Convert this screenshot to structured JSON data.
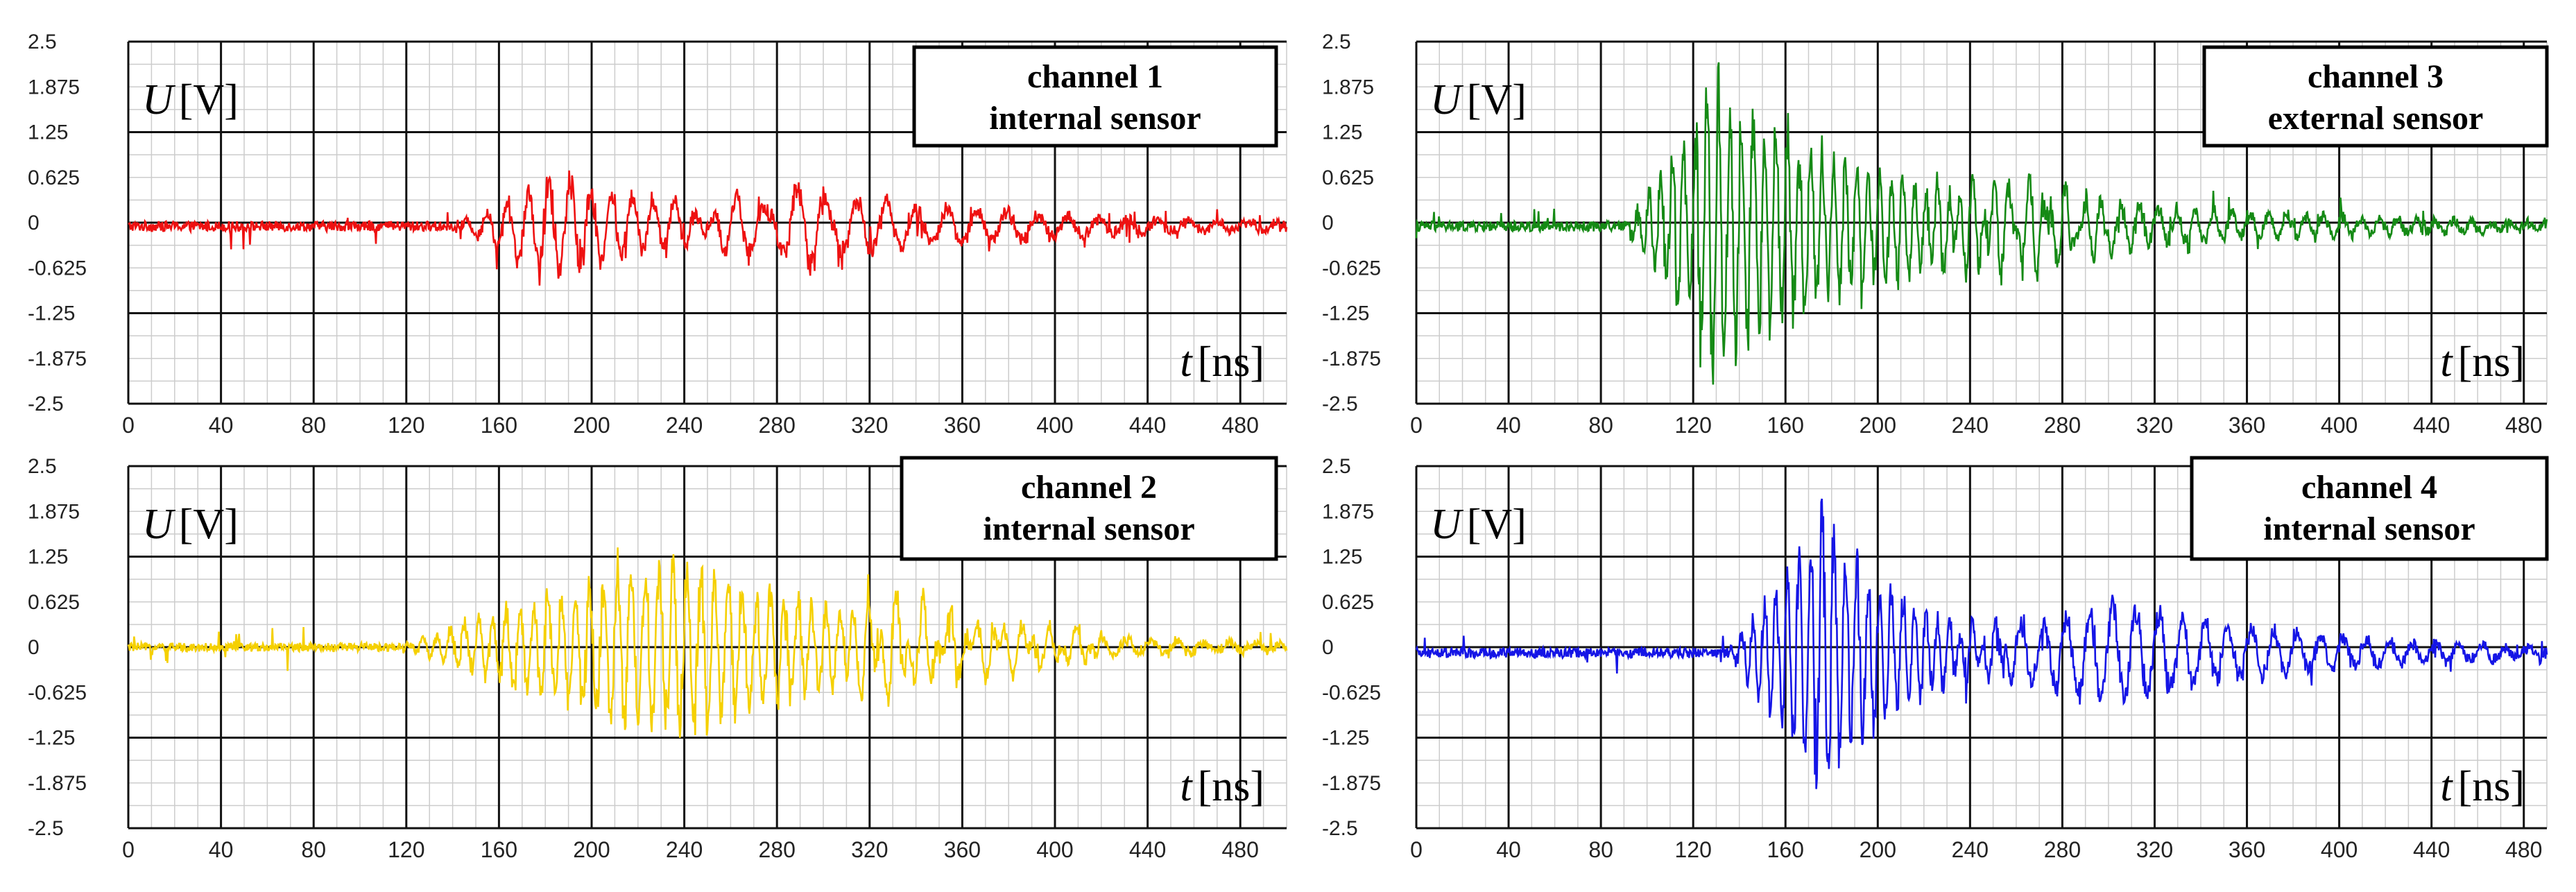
{
  "figure": {
    "background": "#ffffff",
    "grid_minor_color": "#cccccc",
    "grid_major_color": "#111111"
  },
  "chart_data": [
    {
      "type": "line",
      "id": "ch1",
      "label_line1": "channel 1",
      "label_line2": "internal sensor",
      "ylabel_var": "U",
      "ylabel_unit": "[V]",
      "xlabel_var": "t",
      "xlabel_unit": "[ns]",
      "xlim": [
        0,
        500
      ],
      "ylim": [
        -2.5,
        2.5
      ],
      "xticks": [
        "0",
        "40",
        "80",
        "120",
        "160",
        "200",
        "240",
        "280",
        "320",
        "360",
        "400",
        "440",
        "480"
      ],
      "xtick_values": [
        0,
        40,
        80,
        120,
        160,
        200,
        240,
        280,
        320,
        360,
        400,
        440,
        480
      ],
      "yticks": [
        "2.5",
        "1.875",
        "1.25",
        "0.625",
        "0",
        "-0.625",
        "-1.25",
        "-1.875",
        "-2.5"
      ],
      "ytick_values": [
        2.5,
        1.875,
        1.25,
        0.625,
        0,
        -0.625,
        -1.25,
        -1.875,
        -2.5
      ],
      "color": "#ee1111",
      "signal": {
        "baseline": -0.05,
        "noise": 0.07,
        "bursts": [
          {
            "start": 140,
            "peak": 185,
            "end": 320,
            "amp": 0.85,
            "period": 9
          },
          {
            "start": 230,
            "peak": 290,
            "end": 500,
            "amp": 0.6,
            "period": 13
          }
        ]
      }
    },
    {
      "type": "line",
      "id": "ch3",
      "label_line1": "channel 3",
      "label_line2": "external sensor",
      "ylabel_var": "U",
      "ylabel_unit": "[V]",
      "xlabel_var": "t",
      "xlabel_unit": "[ns]",
      "xlim": [
        0,
        490
      ],
      "ylim": [
        -2.5,
        2.5
      ],
      "xticks": [
        "0",
        "40",
        "80",
        "120",
        "160",
        "200",
        "240",
        "280",
        "320",
        "360",
        "400",
        "440",
        "480"
      ],
      "xtick_values": [
        0,
        40,
        80,
        120,
        160,
        200,
        240,
        280,
        320,
        360,
        400,
        440,
        480
      ],
      "yticks": [
        "2.5",
        "1.875",
        "1.25",
        "0.625",
        "0",
        "-0.625",
        "-1.25",
        "-1.875",
        "-2.5"
      ],
      "ytick_values": [
        2.5,
        1.875,
        1.25,
        0.625,
        0,
        -0.625,
        -1.25,
        -1.875,
        -2.5
      ],
      "color": "#158a15",
      "signal": {
        "baseline": -0.05,
        "noise": 0.07,
        "bursts": [
          {
            "start": 90,
            "peak": 130,
            "end": 300,
            "amp": 2.3,
            "period": 5
          },
          {
            "start": 200,
            "peak": 260,
            "end": 490,
            "amp": 0.6,
            "period": 8
          }
        ]
      }
    },
    {
      "type": "line",
      "id": "ch2",
      "label_line1": "channel 2",
      "label_line2": "internal sensor",
      "ylabel_var": "U",
      "ylabel_unit": "[V]",
      "xlabel_var": "t",
      "xlabel_unit": "[ns]",
      "xlim": [
        0,
        500
      ],
      "ylim": [
        -2.5,
        2.5
      ],
      "xticks": [
        "0",
        "40",
        "80",
        "120",
        "160",
        "200",
        "240",
        "280",
        "320",
        "360",
        "400",
        "440",
        "480"
      ],
      "xtick_values": [
        0,
        40,
        80,
        120,
        160,
        200,
        240,
        280,
        320,
        360,
        400,
        440,
        480
      ],
      "yticks": [
        "2.5",
        "1.875",
        "1.25",
        "0.625",
        "0",
        "-0.625",
        "-1.25",
        "-1.875",
        "-2.5"
      ],
      "ytick_values": [
        2.5,
        1.875,
        1.25,
        0.625,
        0,
        -0.625,
        -1.25,
        -1.875,
        -2.5
      ],
      "color": "#f5d000",
      "signal": {
        "baseline": 0.0,
        "noise": 0.06,
        "bursts": [
          {
            "start": 115,
            "peak": 235,
            "end": 420,
            "amp": 1.5,
            "period": 6
          },
          {
            "start": 300,
            "peak": 330,
            "end": 500,
            "amp": 0.55,
            "period": 11
          }
        ]
      }
    },
    {
      "type": "line",
      "id": "ch4",
      "label_line1": "channel 4",
      "label_line2": "internal sensor",
      "ylabel_var": "U",
      "ylabel_unit": "[V]",
      "xlabel_var": "t",
      "xlabel_unit": "[ns]",
      "xlim": [
        0,
        490
      ],
      "ylim": [
        -2.5,
        2.5
      ],
      "xticks": [
        "0",
        "40",
        "80",
        "120",
        "160",
        "200",
        "240",
        "280",
        "320",
        "360",
        "400",
        "440",
        "480"
      ],
      "xtick_values": [
        0,
        40,
        80,
        120,
        160,
        200,
        240,
        280,
        320,
        360,
        400,
        440,
        480
      ],
      "yticks": [
        "2.5",
        "1.875",
        "1.25",
        "0.625",
        "0",
        "-0.625",
        "-1.25",
        "-1.875",
        "-2.5"
      ],
      "ytick_values": [
        2.5,
        1.875,
        1.25,
        0.625,
        0,
        -0.625,
        -1.25,
        -1.875,
        -2.5
      ],
      "color": "#1515e6",
      "signal": {
        "baseline": -0.08,
        "noise": 0.07,
        "bursts": [
          {
            "start": 135,
            "peak": 175,
            "end": 260,
            "amp": 2.2,
            "period": 5
          },
          {
            "start": 220,
            "peak": 300,
            "end": 490,
            "amp": 0.85,
            "period": 10
          }
        ]
      }
    }
  ]
}
